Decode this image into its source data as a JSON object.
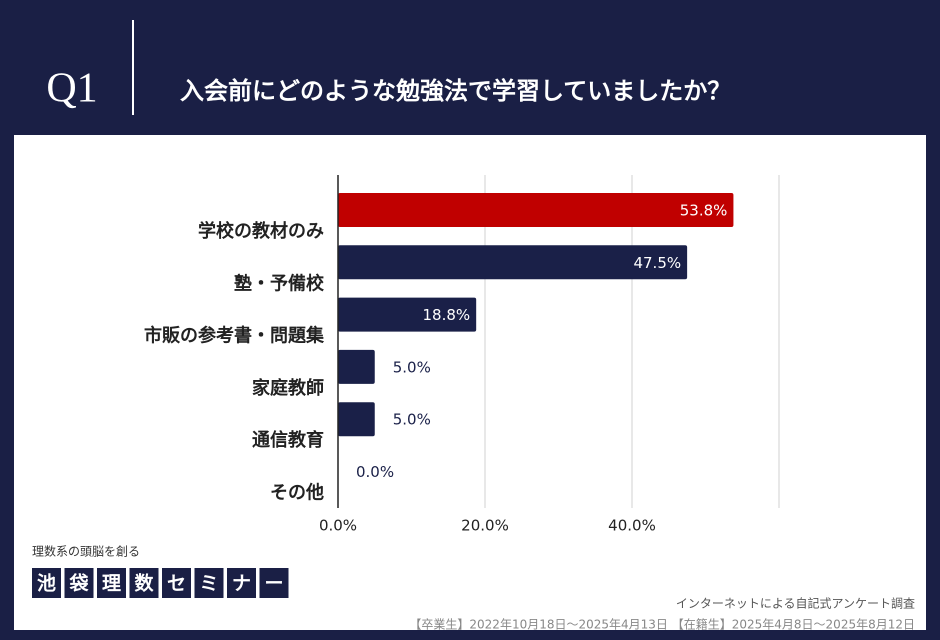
{
  "header": {
    "number": "Q1",
    "title": "入会前にどのような勉強法で学習していましたか？"
  },
  "chart_data": {
    "type": "bar",
    "orientation": "horizontal",
    "categories": [
      "学校の教材のみ",
      "塾・予備校",
      "市販の参考書・問題集",
      "家庭教師",
      "通信教育",
      "その他"
    ],
    "values": [
      53.8,
      47.5,
      18.8,
      5.0,
      5.0,
      0.0
    ],
    "value_labels": [
      "53.8%",
      "47.5%",
      "18.8%",
      "5.0%",
      "5.0%",
      "0.0%"
    ],
    "colors": [
      "#c00000",
      "#1a2048",
      "#1a2048",
      "#1a2048",
      "#1a2048",
      "#1a2048"
    ],
    "xlim": [
      0,
      60
    ],
    "xticks": [
      {
        "value": 0,
        "label": "0.0%"
      },
      {
        "value": 20,
        "label": "20.0%"
      },
      {
        "value": 40,
        "label": "40.0%"
      }
    ],
    "grid": true
  },
  "logo": {
    "tagline": "理数系の頭脳を創る",
    "characters": [
      "池",
      "袋",
      "理",
      "数",
      "セ",
      "ミ",
      "ナ",
      "ー"
    ]
  },
  "footer": {
    "method": "インターネットによる自記式アンケート調査",
    "period": "【卒業生】2022年10月18日〜2025年4月13日 【在籍生】2025年4月8日〜2025年8月12日"
  }
}
